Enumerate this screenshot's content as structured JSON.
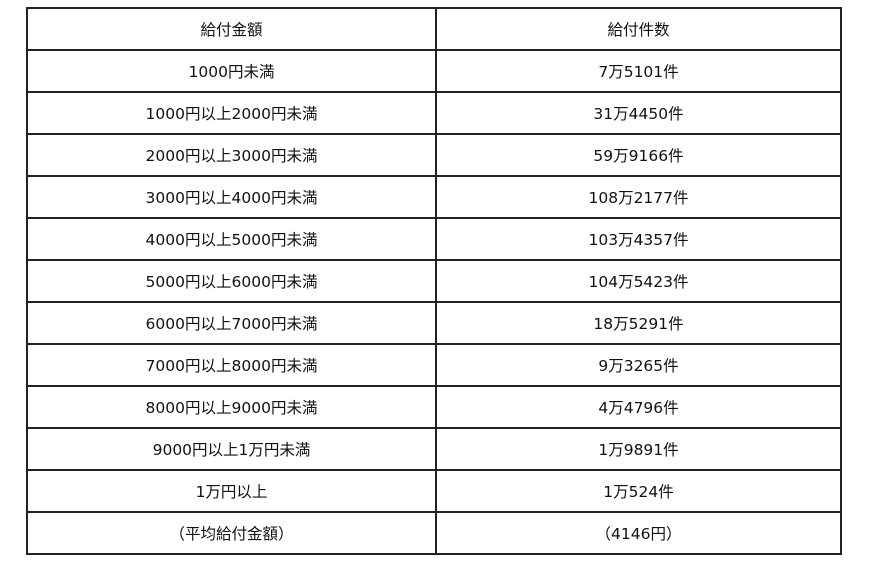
{
  "table": {
    "headers": [
      "給付金額",
      "給付件数"
    ],
    "rows": [
      [
        "1000円未満",
        "7万5101件"
      ],
      [
        "1000円以上2000円未満",
        "31万4450件"
      ],
      [
        "2000円以上3000円未満",
        "59万9166件"
      ],
      [
        "3000円以上4000円未満",
        "108万2177件"
      ],
      [
        "4000円以上5000円未満",
        "103万4357件"
      ],
      [
        "5000円以上6000円未満",
        "104万5423件"
      ],
      [
        "6000円以上7000円未満",
        "18万5291件"
      ],
      [
        "7000円以上8000円未満",
        "9万3265件"
      ],
      [
        "8000円以上9000円未満",
        "4万4796件"
      ],
      [
        "9000円以上1万円未満",
        "1万9891件"
      ],
      [
        "1万円以上",
        "1万524件"
      ],
      [
        "（平均給付金額）",
        "（4146円）"
      ]
    ]
  }
}
